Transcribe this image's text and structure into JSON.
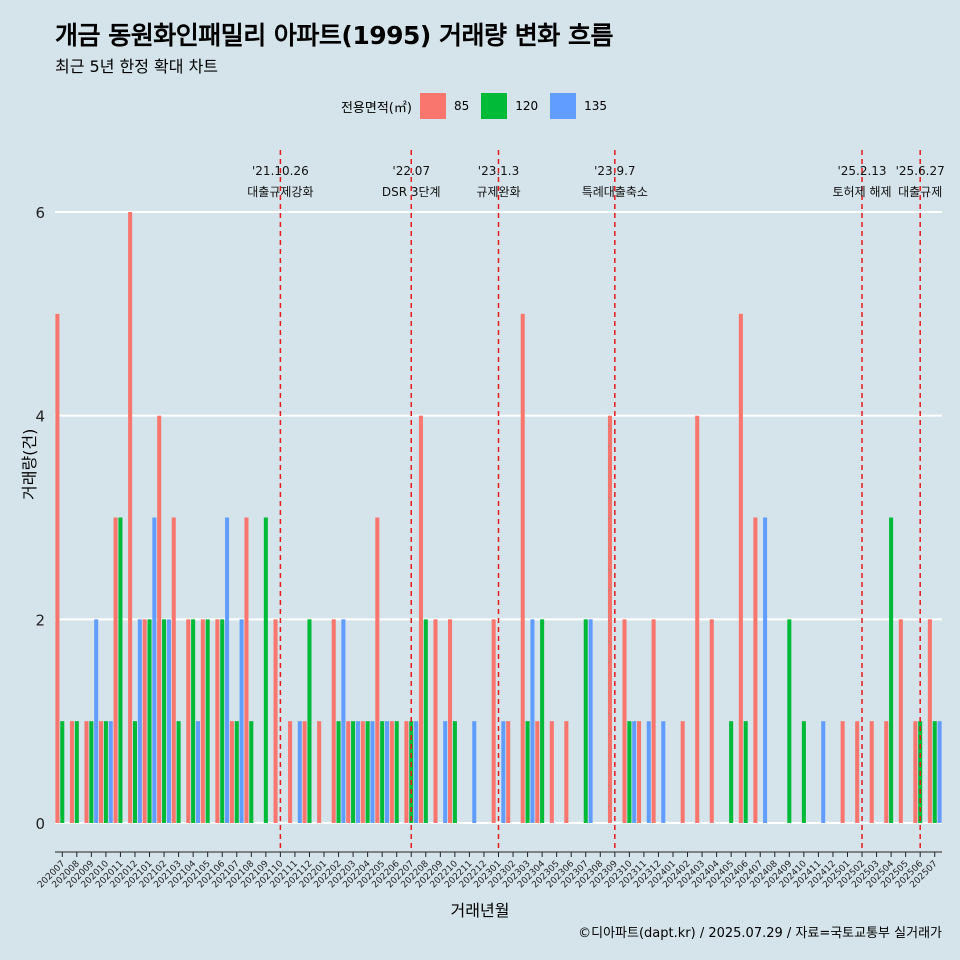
{
  "title": "개금 동원화인패밀리 아파트(1995) 거래량 변화 흐름",
  "subtitle": "최근 5년 한정 확대 차트",
  "caption": "©디아파트(dapt.kr) / 2025.07.29 / 자료=국토교통부 실거래가",
  "legend": {
    "title": "전용면적(㎡)",
    "items": [
      {
        "label": "85",
        "color": "#f8766d"
      },
      {
        "label": "120",
        "color": "#00ba38"
      },
      {
        "label": "135",
        "color": "#619cff"
      }
    ]
  },
  "chart_data": {
    "type": "bar",
    "title": "개금 동원화인패밀리 아파트(1995) 거래량 변화 흐름",
    "xlabel": "거래년월",
    "ylabel": "거래량(건)",
    "ylim": [
      0,
      6
    ],
    "yticks": [
      0,
      2,
      4,
      6
    ],
    "grid": true,
    "legend_position": "top",
    "months": [
      "202007",
      "202008",
      "202009",
      "202010",
      "202011",
      "202012",
      "202101",
      "202102",
      "202103",
      "202104",
      "202105",
      "202106",
      "202107",
      "202108",
      "202109",
      "202110",
      "202111",
      "202112",
      "202201",
      "202202",
      "202203",
      "202204",
      "202205",
      "202206",
      "202207",
      "202208",
      "202209",
      "202210",
      "202211",
      "202212",
      "202301",
      "202302",
      "202303",
      "202304",
      "202305",
      "202306",
      "202307",
      "202308",
      "202309",
      "202310",
      "202311",
      "202312",
      "202401",
      "202402",
      "202403",
      "202404",
      "202405",
      "202406",
      "202407",
      "202408",
      "202409",
      "202410",
      "202411",
      "202412",
      "202501",
      "202502",
      "202503",
      "202504",
      "202505",
      "202506",
      "202507"
    ],
    "tick_labels": [
      "202007",
      "202008",
      "202009",
      "202010",
      "202011",
      "202012",
      "202101",
      "202102",
      "202103",
      "202104",
      "202105",
      "202106",
      "202107",
      "202108",
      "202109",
      "202110",
      "202111",
      "202112",
      "202201",
      "202202",
      "202203",
      "202204",
      "202205",
      "202206",
      "202207",
      "202208",
      "202209",
      "202210",
      "202211",
      "202212",
      "202301",
      "202302",
      "202303",
      "202304",
      "202305",
      "202306",
      "202307",
      "202308",
      "202309",
      "202310",
      "202311",
      "202312",
      "202401",
      "202402",
      "202403",
      "202404",
      "202405",
      "202406",
      "202407",
      "202408",
      "202409",
      "202410",
      "202411",
      "202412",
      "202501",
      "202502",
      "202503",
      "202504",
      "202505",
      "202506",
      "202507"
    ],
    "series": [
      {
        "name": "85",
        "color": "#f8766d",
        "values": [
          5,
          1,
          1,
          1,
          3,
          6,
          2,
          4,
          3,
          2,
          2,
          2,
          1,
          3,
          0,
          2,
          1,
          1,
          1,
          2,
          1,
          1,
          3,
          1,
          1,
          4,
          2,
          2,
          0,
          0,
          2,
          1,
          5,
          1,
          1,
          1,
          0,
          0,
          4,
          2,
          1,
          2,
          0,
          1,
          4,
          2,
          0,
          5,
          3,
          0,
          0,
          0,
          0,
          0,
          1,
          1,
          1,
          1,
          2,
          1,
          2
        ]
      },
      {
        "name": "120",
        "color": "#00ba38",
        "values": [
          1,
          1,
          1,
          1,
          3,
          1,
          2,
          2,
          1,
          2,
          2,
          2,
          1,
          1,
          3,
          0,
          0,
          2,
          0,
          1,
          1,
          1,
          1,
          1,
          1,
          2,
          0,
          1,
          0,
          0,
          0,
          0,
          1,
          2,
          0,
          0,
          2,
          0,
          0,
          1,
          0,
          0,
          0,
          0,
          0,
          0,
          1,
          1,
          0,
          0,
          2,
          1,
          0,
          0,
          0,
          0,
          0,
          3,
          0,
          1,
          1
        ]
      },
      {
        "name": "135",
        "color": "#619cff",
        "values": [
          0,
          0,
          2,
          1,
          0,
          2,
          3,
          2,
          0,
          1,
          0,
          3,
          2,
          0,
          0,
          0,
          1,
          0,
          0,
          2,
          1,
          1,
          1,
          0,
          1,
          0,
          1,
          0,
          1,
          0,
          1,
          0,
          2,
          0,
          0,
          0,
          2,
          0,
          0,
          1,
          1,
          1,
          0,
          0,
          0,
          0,
          0,
          0,
          3,
          0,
          0,
          0,
          1,
          0,
          0,
          0,
          0,
          0,
          0,
          0,
          1
        ]
      }
    ],
    "annotations": [
      {
        "month": "202110",
        "date": "'21.10.26",
        "label": "대출규제강화"
      },
      {
        "month": "202207",
        "date": "'22.07",
        "label": "DSR 3단계"
      },
      {
        "month": "202301",
        "date": "'23.1.3",
        "label": "규제완화"
      },
      {
        "month": "202309",
        "date": "'23.9.7",
        "label": "특례대출축소"
      },
      {
        "month": "202502",
        "date": "'25.2.13",
        "label": "토허제 해제"
      },
      {
        "month": "202506",
        "date": "'25.6.27",
        "label": "대출규제"
      }
    ]
  }
}
